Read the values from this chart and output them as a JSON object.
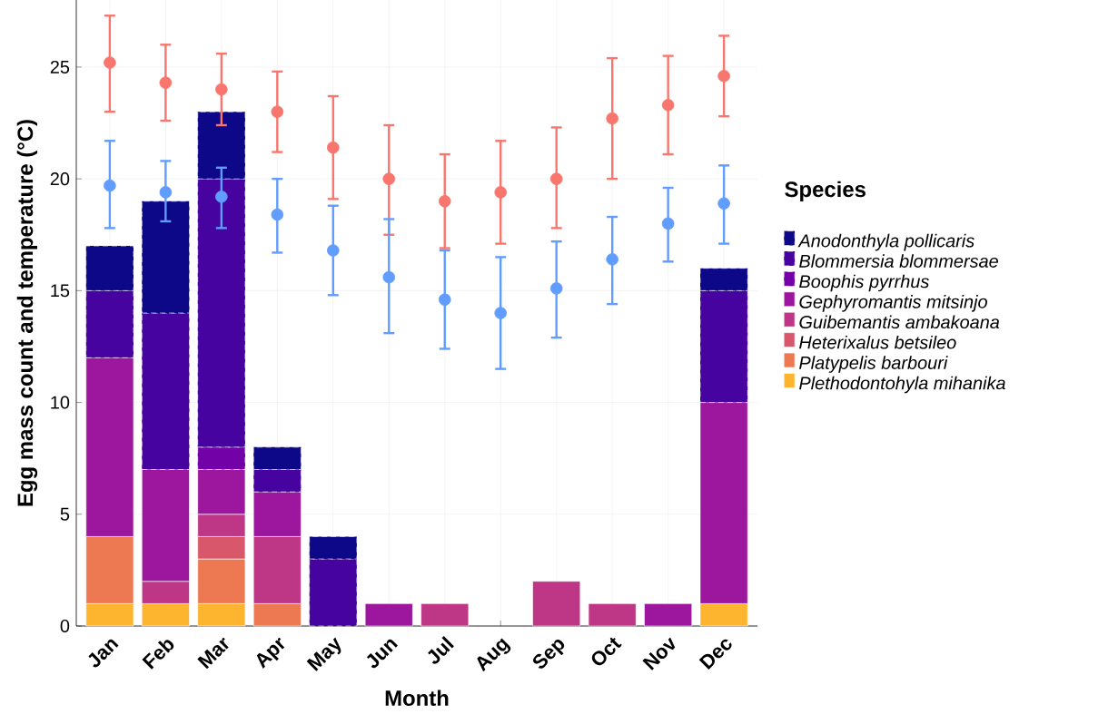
{
  "chart_data": {
    "type": "bar",
    "stacked": true,
    "xlabel": "Month",
    "ylabel": "Egg mass count and temperature (°C)",
    "legend_title": "Species",
    "legend": "right",
    "grid": true,
    "marker": "circle",
    "categories": [
      "Jan",
      "Feb",
      "Mar",
      "Apr",
      "May",
      "Jun",
      "Jul",
      "Aug",
      "Sep",
      "Oct",
      "Nov",
      "Dec"
    ],
    "ylim": [
      0,
      28
    ],
    "yticks": [
      0,
      5,
      10,
      15,
      20,
      25
    ],
    "series": [
      {
        "name": "Plethodontohyla mihanika",
        "color": "#fdb42f",
        "values": [
          1,
          1,
          1,
          0,
          0,
          0,
          0,
          0,
          0,
          0,
          0,
          1
        ]
      },
      {
        "name": "Platypelis barbouri",
        "color": "#ed7953",
        "values": [
          3,
          0,
          2,
          1,
          0,
          0,
          0,
          0,
          0,
          0,
          0,
          0
        ]
      },
      {
        "name": "Heterixalus betsileo",
        "color": "#d8576b",
        "values": [
          0,
          0,
          1,
          0,
          0,
          0,
          0,
          0,
          0,
          0,
          0,
          0
        ]
      },
      {
        "name": "Guibemantis ambakoana",
        "color": "#bd3786",
        "values": [
          0,
          1,
          1,
          3,
          0,
          0,
          1,
          0,
          2,
          1,
          0,
          0
        ]
      },
      {
        "name": "Gephyromantis mitsinjo",
        "color": "#9c179e",
        "values": [
          8,
          5,
          2,
          2,
          0,
          1,
          0,
          0,
          0,
          0,
          1,
          9
        ]
      },
      {
        "name": "Boophis pyrrhus",
        "color": "#7201a8",
        "values": [
          0,
          0,
          1,
          0,
          0,
          0,
          0,
          0,
          0,
          0,
          0,
          0
        ]
      },
      {
        "name": "Blommersia blommersae",
        "color": "#46039f",
        "values": [
          3,
          7,
          12,
          1,
          3,
          0,
          0,
          0,
          0,
          0,
          0,
          5
        ]
      },
      {
        "name": "Anodonthyla pollicaris",
        "color": "#0d0887",
        "values": [
          2,
          5,
          3,
          1,
          1,
          0,
          0,
          0,
          0,
          0,
          0,
          1
        ]
      },
      {
        "type": "scatter",
        "color": "#f8766d",
        "x": [
          "Jan",
          "Feb",
          "Mar",
          "Apr",
          "May",
          "Jun",
          "Jul",
          "Aug",
          "Sep",
          "Oct",
          "Nov",
          "Dec"
        ],
        "values": [
          25.2,
          24.3,
          24.0,
          23.0,
          21.4,
          20.0,
          19.0,
          19.4,
          20.0,
          22.7,
          23.3,
          24.6
        ],
        "errors": [
          [
            23.0,
            27.3
          ],
          [
            22.6,
            26.0
          ],
          [
            22.4,
            25.6
          ],
          [
            21.2,
            24.8
          ],
          [
            19.1,
            23.7
          ],
          [
            17.5,
            22.4
          ],
          [
            16.9,
            21.1
          ],
          [
            17.1,
            21.7
          ],
          [
            17.8,
            22.3
          ],
          [
            20.0,
            25.4
          ],
          [
            21.1,
            25.5
          ],
          [
            22.8,
            26.4
          ]
        ]
      },
      {
        "type": "scatter",
        "color": "#619cff",
        "x": [
          "Jan",
          "Feb",
          "Mar",
          "Apr",
          "May",
          "Jun",
          "Jul",
          "Aug",
          "Sep",
          "Oct",
          "Nov",
          "Dec"
        ],
        "values": [
          19.7,
          19.4,
          19.2,
          18.4,
          16.8,
          15.6,
          14.6,
          14.0,
          15.1,
          16.4,
          18.0,
          18.9
        ],
        "errors": [
          [
            17.8,
            21.7
          ],
          [
            18.1,
            20.8
          ],
          [
            17.8,
            20.5
          ],
          [
            16.7,
            20.0
          ],
          [
            14.8,
            18.8
          ],
          [
            13.1,
            18.2
          ],
          [
            12.4,
            16.8
          ],
          [
            11.5,
            16.5
          ],
          [
            12.9,
            17.2
          ],
          [
            14.4,
            18.3
          ],
          [
            16.3,
            19.6
          ],
          [
            17.1,
            20.6
          ]
        ]
      }
    ]
  }
}
